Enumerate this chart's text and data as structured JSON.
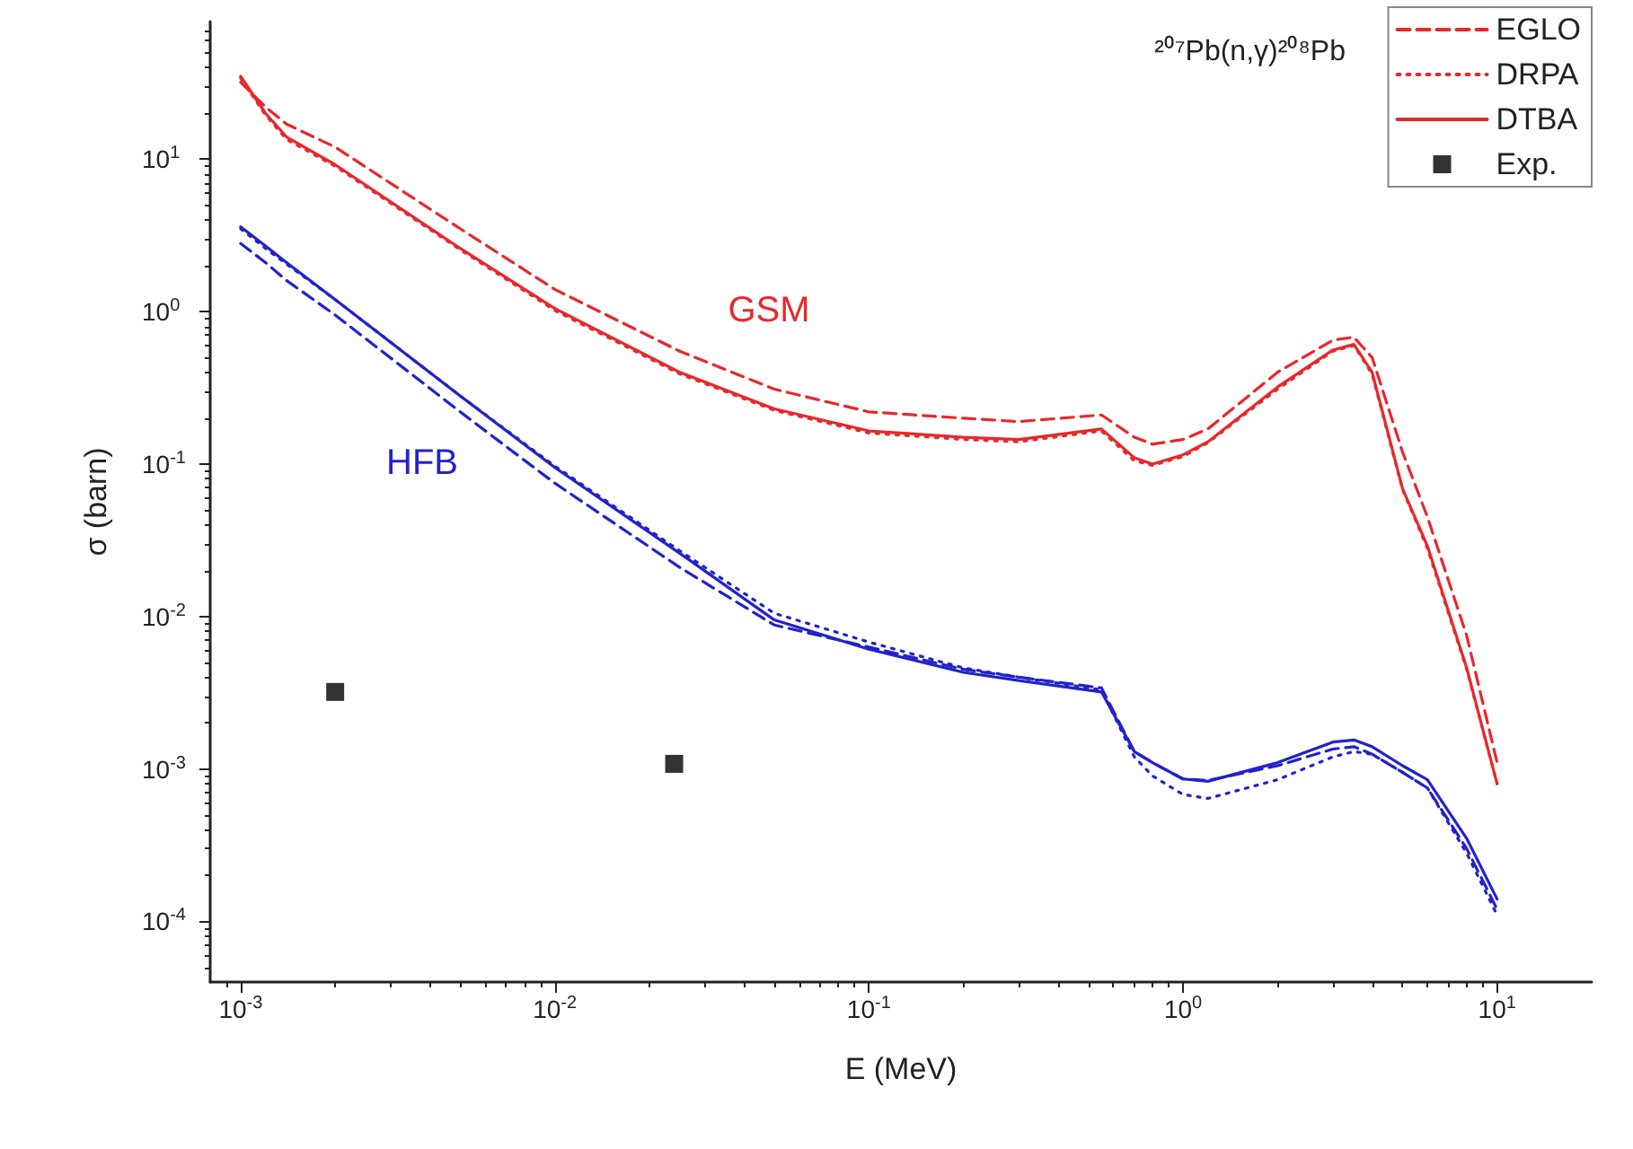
{
  "chart_data": {
    "type": "line",
    "title": "²⁰⁷Pb(n,γ)²⁰⁸Pb",
    "xlabel": "E (MeV)",
    "ylabel": "σ (barn)",
    "log": "xy",
    "grid": false,
    "legend": "top right",
    "marker": "none",
    "xlim": [
      0.0008,
      20
    ],
    "ylim": [
      4e-05,
      80
    ],
    "xticks": [
      {
        "value": 0.001,
        "label": "10$^{-3}$"
      },
      {
        "value": 0.01,
        "label": "10$^{-2}$"
      },
      {
        "value": 0.1,
        "label": "10$^{-1}$"
      },
      {
        "value": 1,
        "label": "10$^{0}$"
      },
      {
        "value": 10,
        "label": "10$^{1}$"
      }
    ],
    "yticks": [
      {
        "value": 0.0001,
        "label": "10$^{-4}$"
      },
      {
        "value": 0.001,
        "label": "10$^{-3}$"
      },
      {
        "value": 0.01,
        "label": "10$^{-2}$"
      },
      {
        "value": 0.1,
        "label": "10$^{-1}$"
      },
      {
        "value": 1,
        "label": "10$^{0}$"
      },
      {
        "value": 10,
        "label": "10$^{1}$"
      }
    ],
    "x": [
      0.001,
      0.0012,
      0.0014,
      0.002,
      0.005,
      0.01,
      0.025,
      0.05,
      0.1,
      0.2,
      0.3,
      0.55,
      0.7,
      0.8,
      1,
      1.2,
      2,
      3,
      3.5,
      4,
      5,
      6,
      8,
      10
    ],
    "series": [
      {
        "name": "EGLO",
        "color": "#e8282b",
        "line_style": "dashed",
        "values": [
          32,
          22,
          17,
          12,
          3.5,
          1.4,
          0.55,
          0.31,
          0.22,
          0.2,
          0.19,
          0.21,
          0.15,
          0.135,
          0.145,
          0.17,
          0.4,
          0.65,
          0.68,
          0.5,
          0.12,
          0.045,
          0.0075,
          0.0011
        ]
      },
      {
        "name": "DRPA",
        "color": "#e8282b",
        "line_style": "dotted",
        "values": [
          34,
          19.5,
          13.5,
          9,
          2.55,
          1.02,
          0.39,
          0.225,
          0.16,
          0.145,
          0.14,
          0.165,
          0.105,
          0.098,
          0.112,
          0.138,
          0.31,
          0.55,
          0.6,
          0.39,
          0.068,
          0.028,
          0.0045,
          0.0008
        ]
      },
      {
        "name": "DTBA",
        "color": "#e8282b",
        "line_style": "solid",
        "values": [
          35,
          20,
          14,
          9.2,
          2.6,
          1.05,
          0.4,
          0.23,
          0.165,
          0.15,
          0.145,
          0.17,
          0.11,
          0.1,
          0.115,
          0.14,
          0.32,
          0.56,
          0.61,
          0.4,
          0.069,
          0.029,
          0.0046,
          0.0008
        ]
      },
      {
        "color": "#2222cc",
        "line_style": "dashed",
        "values": [
          2.8,
          2.1,
          1.6,
          0.95,
          0.22,
          0.075,
          0.021,
          0.0088,
          0.0063,
          0.0045,
          0.004,
          0.0034,
          0.0013,
          0.0011,
          0.00086,
          0.00084,
          0.00105,
          0.00135,
          0.0014,
          0.00125,
          0.00095,
          0.00075,
          0.0003,
          0.00012
        ]
      },
      {
        "color": "#2222cc",
        "line_style": "dotted",
        "values": [
          3.5,
          2.6,
          2.05,
          1.2,
          0.28,
          0.097,
          0.027,
          0.0105,
          0.0068,
          0.0046,
          0.004,
          0.0033,
          0.0012,
          0.0009,
          0.00068,
          0.00064,
          0.00085,
          0.0012,
          0.0013,
          0.00125,
          0.00095,
          0.00075,
          0.00028,
          0.00011
        ]
      },
      {
        "color": "#2222cc",
        "line_style": "solid",
        "values": [
          3.6,
          2.7,
          2.1,
          1.2,
          0.28,
          0.095,
          0.026,
          0.0095,
          0.0061,
          0.0043,
          0.0038,
          0.0032,
          0.0013,
          0.0011,
          0.00086,
          0.00083,
          0.0011,
          0.0015,
          0.00155,
          0.0014,
          0.00105,
          0.00085,
          0.00035,
          0.00014
        ]
      },
      {
        "name": "Exp.",
        "type": "scatter",
        "marker": "square",
        "color": "#000000",
        "x": [
          0.002,
          0.024
        ],
        "values": [
          0.0032,
          0.00108
        ]
      }
    ],
    "annotations": [
      "GSM",
      "HFB"
    ]
  }
}
